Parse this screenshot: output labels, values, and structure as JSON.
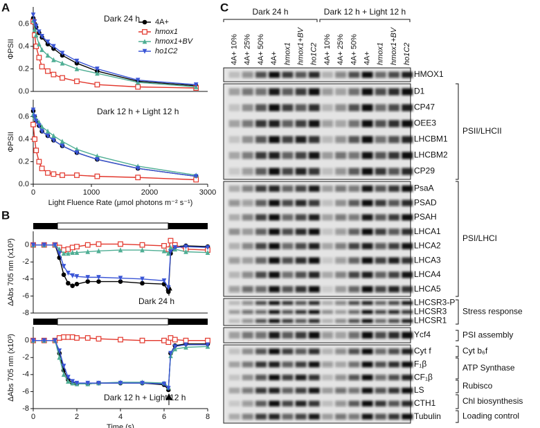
{
  "panels": [
    "A",
    "B",
    "C"
  ],
  "chart_data": [
    {
      "type": "line",
      "title": "Dark 24 h",
      "ylabel": "ΦPSII",
      "x": [
        0,
        25,
        50,
        100,
        150,
        250,
        350,
        500,
        750,
        1100,
        1800,
        2800
      ],
      "xlim": [
        0,
        3000
      ],
      "ylim": [
        0,
        0.75
      ],
      "yticks": [
        {
          "value": 0,
          "label": "0.0"
        },
        0.2,
        0.4,
        0.6
      ],
      "legend": "upper right",
      "series": [
        {
          "name": "4A+",
          "color": "#000000",
          "marker": "circle",
          "values": [
            0.65,
            0.6,
            0.57,
            0.52,
            0.48,
            0.42,
            0.38,
            0.32,
            0.25,
            0.18,
            0.09,
            0.05
          ]
        },
        {
          "name": "hmox1",
          "color": "#e2352a",
          "marker": "square",
          "values": [
            0.62,
            0.5,
            0.4,
            0.3,
            0.22,
            0.18,
            0.15,
            0.12,
            0.09,
            0.06,
            0.04,
            0.03
          ]
        },
        {
          "name": "hmox1+BV",
          "color": "#4fae94",
          "marker": "triangle",
          "values": [
            0.63,
            0.55,
            0.5,
            0.42,
            0.37,
            0.32,
            0.28,
            0.25,
            0.2,
            0.16,
            0.08,
            0.04
          ]
        },
        {
          "name": "ho1C2",
          "color": "#3a55d6",
          "marker": "triangle-down",
          "values": [
            0.68,
            0.62,
            0.58,
            0.53,
            0.49,
            0.44,
            0.4,
            0.34,
            0.27,
            0.2,
            0.1,
            0.06
          ]
        }
      ]
    },
    {
      "type": "line",
      "title": "Dark 12 h + Light 12 h",
      "ylabel": "ΦPSII",
      "xlabel": "Light Fluence Rate (μmol photons m⁻² s⁻¹)",
      "x": [
        0,
        25,
        50,
        100,
        150,
        250,
        350,
        500,
        750,
        1100,
        1800,
        2800
      ],
      "xlim": [
        0,
        3000
      ],
      "xticks": [
        0,
        1000,
        2000,
        3000
      ],
      "ylim": [
        0,
        0.75
      ],
      "yticks": [
        {
          "value": 0,
          "label": "0.0"
        },
        0.2,
        0.4,
        0.6
      ],
      "series": [
        {
          "color": "#000000",
          "marker": "circle",
          "values": [
            0.65,
            0.6,
            0.56,
            0.52,
            0.47,
            0.43,
            0.39,
            0.34,
            0.28,
            0.22,
            0.14,
            0.07
          ]
        },
        {
          "color": "#e2352a",
          "marker": "square",
          "values": [
            0.53,
            0.4,
            0.3,
            0.2,
            0.14,
            0.1,
            0.09,
            0.08,
            0.08,
            0.07,
            0.06,
            0.04
          ]
        },
        {
          "color": "#4fae94",
          "marker": "triangle",
          "values": [
            0.62,
            0.6,
            0.58,
            0.55,
            0.51,
            0.47,
            0.43,
            0.38,
            0.31,
            0.25,
            0.16,
            0.08
          ]
        },
        {
          "color": "#3a55d6",
          "marker": "triangle-down",
          "values": [
            0.66,
            0.6,
            0.56,
            0.52,
            0.47,
            0.43,
            0.39,
            0.34,
            0.28,
            0.22,
            0.14,
            0.07
          ]
        }
      ]
    },
    {
      "type": "line",
      "title": "Dark 24 h",
      "ylabel": "ΔAbs 705 nm (x10³)",
      "x": [
        0,
        0.5,
        1,
        1.2,
        1.4,
        1.6,
        1.8,
        2,
        2.5,
        3,
        4,
        5,
        6,
        6.2,
        6.3,
        6.5,
        7,
        8
      ],
      "xlim": [
        0,
        8
      ],
      "ylim": [
        -8,
        1.6
      ],
      "yticks": [
        0,
        -2,
        -4,
        -6,
        -8
      ],
      "series": [
        {
          "color": "#000000",
          "marker": "circle",
          "values": [
            0,
            0,
            0,
            -1.5,
            -3.5,
            -4.5,
            -4.8,
            -4.6,
            -4.3,
            -4.3,
            -4.3,
            -4.5,
            -4.6,
            -5.5,
            -1,
            -0.2,
            -0.1,
            -0.2
          ]
        },
        {
          "color": "#e2352a",
          "marker": "square",
          "values": [
            0,
            0,
            0,
            -0.3,
            -0.6,
            -0.5,
            -0.3,
            -0.2,
            0,
            0.1,
            0.1,
            0,
            -0.1,
            -0.5,
            0.5,
            0,
            -0.5,
            -0.6
          ]
        },
        {
          "color": "#4fae94",
          "marker": "triangle",
          "values": [
            0,
            0,
            0,
            -0.5,
            -1,
            -1,
            -0.9,
            -0.9,
            -0.8,
            -0.7,
            -0.6,
            -0.6,
            -0.7,
            -1,
            -0.3,
            -0.5,
            -0.8,
            -0.9
          ]
        },
        {
          "color": "#3a55d6",
          "marker": "triangle-down",
          "values": [
            0,
            0,
            0,
            -1,
            -2.5,
            -3.3,
            -3.6,
            -3.7,
            -3.8,
            -3.8,
            -3.9,
            -4,
            -4.2,
            -5,
            -0.8,
            -0.3,
            -0.2,
            -0.3
          ]
        }
      ]
    },
    {
      "type": "line",
      "title": "Dark 12 h + Light 12 h",
      "ylabel": "ΔAbs 705 nm (x10³)",
      "xlabel": "Time (s)",
      "x": [
        0,
        0.5,
        1,
        1.2,
        1.4,
        1.6,
        1.8,
        2,
        2.5,
        3,
        4,
        5,
        6,
        6.2,
        6.3,
        6.5,
        7,
        8
      ],
      "xlim": [
        0,
        8
      ],
      "xticks": [
        0,
        2,
        4,
        6,
        8
      ],
      "ylim": [
        -8,
        1.6
      ],
      "yticks": [
        0,
        -2,
        -4,
        -6,
        -8
      ],
      "series": [
        {
          "color": "#000000",
          "marker": "circle",
          "values": [
            0,
            0,
            0,
            -1.5,
            -3.5,
            -4.6,
            -5,
            -5.1,
            -5.1,
            -5,
            -5,
            -5,
            -5.2,
            -5.8,
            -1.5,
            -0.6,
            -0.4,
            -0.4
          ]
        },
        {
          "color": "#e2352a",
          "marker": "square",
          "values": [
            0,
            0,
            0,
            0.3,
            0.4,
            0.4,
            0.4,
            0.3,
            0.3,
            0.2,
            0.1,
            0,
            0,
            -0.2,
            0.3,
            0.1,
            0,
            0
          ]
        },
        {
          "color": "#4fae94",
          "marker": "triangle",
          "values": [
            0,
            0,
            0,
            -2,
            -4,
            -4.8,
            -5,
            -5.1,
            -5.1,
            -5,
            -4.9,
            -4.9,
            -5,
            -5.5,
            -1.8,
            -1,
            -0.8,
            -0.7
          ]
        },
        {
          "color": "#3a55d6",
          "marker": "triangle-down",
          "values": [
            0,
            0,
            0,
            -1.2,
            -3,
            -4.3,
            -4.8,
            -5,
            -5,
            -5,
            -5,
            -5,
            -5.1,
            -5.6,
            -1.5,
            -0.7,
            -0.5,
            -0.5
          ]
        }
      ]
    }
  ],
  "blot": {
    "groups": [
      "Dark 24 h",
      "Dark 12 h + Light 12 h"
    ],
    "lanes": [
      "4A+ 10%",
      "4A+ 25%",
      "4A+ 50%",
      "4A+",
      "hmox1",
      "hmox1+BV",
      "ho1C2"
    ],
    "boxes": [
      [
        "HMOX1"
      ],
      [
        "D1",
        "CP47",
        "OEE3",
        "LHCBM1",
        "LHCBM2",
        "CP29"
      ],
      [
        "PsaA",
        "PSAD",
        "PSAH",
        "LHCA1",
        "LHCA2",
        "LHCA3",
        "LHCA4",
        "LHCA5"
      ],
      [
        "LHCSR3-P",
        "LHCSR3",
        "LHCSR1"
      ],
      [
        "Ycf4"
      ],
      [
        "Cyt f",
        "F₁β",
        "CF₁β",
        "LS",
        "CTH1",
        "Tubulin"
      ]
    ],
    "categories": [
      "PSII/LHCII",
      "PSI/LHCI",
      "Stress response",
      "PSI assembly",
      "Cyt b₆f",
      "ATP Synthase",
      "Rubisco",
      "Chl biosynthesis",
      "Loading control"
    ]
  }
}
